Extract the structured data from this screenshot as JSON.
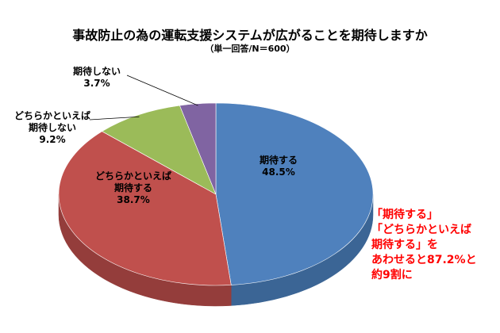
{
  "chart_data": {
    "type": "pie",
    "title": "事故防止の為の運転支援システムが広がることを期待しますか",
    "subtitle": "（単一回答/N＝600）",
    "slices": [
      {
        "label_lines": [
          "期待する"
        ],
        "value": 48.5,
        "value_text": "48.5%",
        "color": "#4f81bd",
        "side_color": "#3b6595"
      },
      {
        "label_lines": [
          "どちらかといえば",
          "期待する"
        ],
        "value": 38.7,
        "value_text": "38.7%",
        "color": "#c0504d",
        "side_color": "#943d3b"
      },
      {
        "label_lines": [
          "どちらかといえば",
          "期待しない"
        ],
        "value": 9.2,
        "value_text": "9.2%",
        "color": "#9bbb59",
        "side_color": "#76903f"
      },
      {
        "label_lines": [
          "期待しない"
        ],
        "value": 3.7,
        "value_text": "3.7%",
        "color": "#8064a2",
        "side_color": "#614b7c"
      }
    ]
  },
  "callout": {
    "lines": [
      "「期待する」",
      "「どちらかといえば",
      "期待する」を",
      "あわせると87.2%と",
      "約9割に"
    ],
    "color": "#ff0000"
  }
}
